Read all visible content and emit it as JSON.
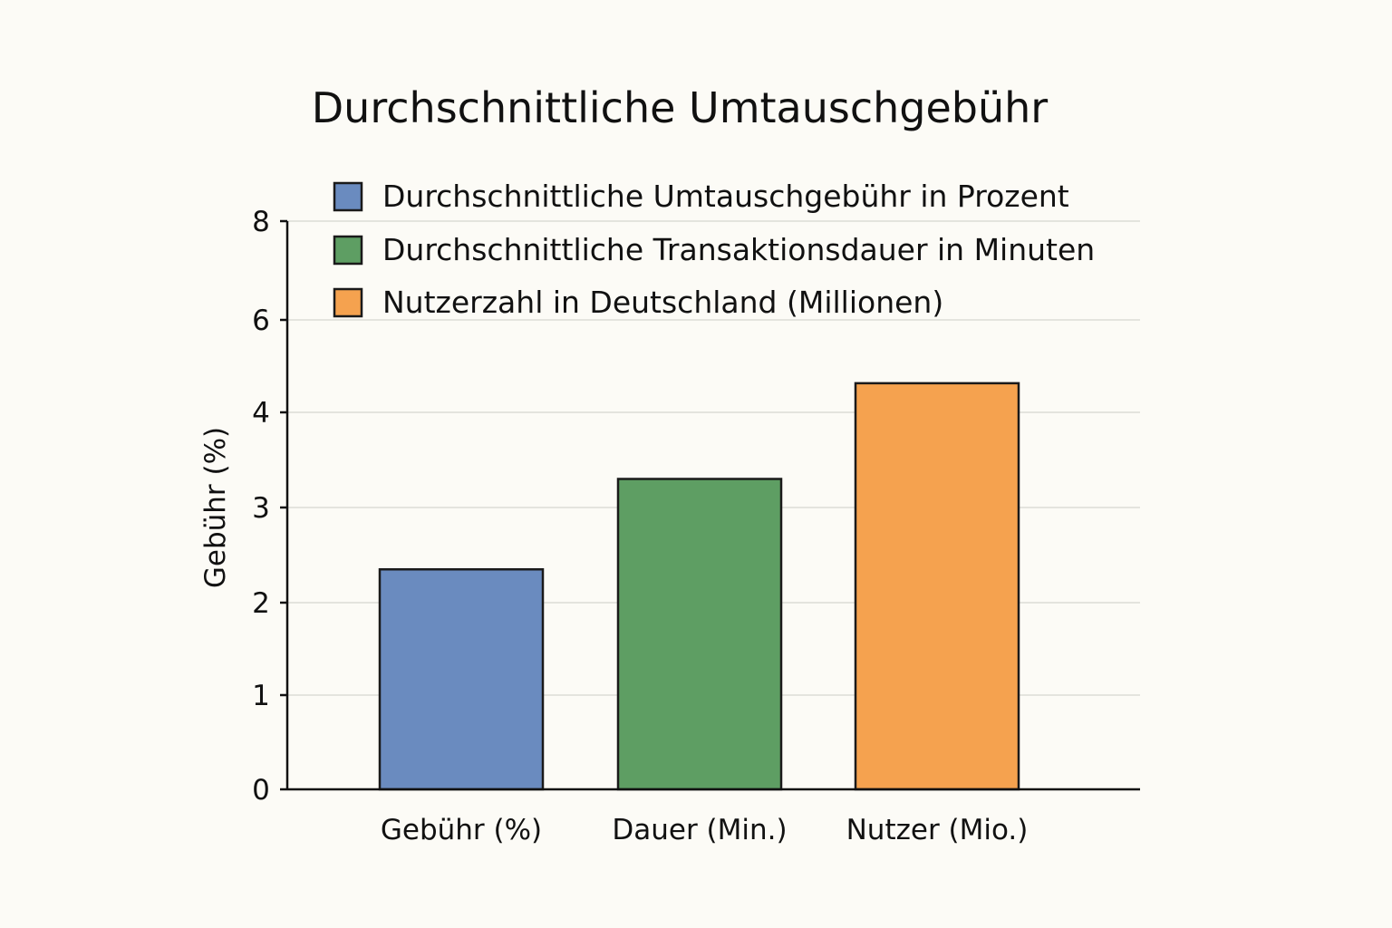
{
  "chart_data": {
    "type": "bar",
    "title": "Durchschnittliche Umtauschgebühr",
    "xlabel": "",
    "ylabel": "Gebühr (%)",
    "categories": [
      "Gebühr (%)",
      "Dauer (Min.)",
      "Nutzer (Mio.)"
    ],
    "values": [
      2.35,
      3.3,
      4.63
    ],
    "colors": [
      "#6a8bbf",
      "#5e9e63",
      "#f5a24f"
    ],
    "y_ticks": [
      0,
      1,
      2,
      3,
      4,
      6,
      8
    ],
    "y_tick_labels": [
      "0",
      "1",
      "2",
      "3",
      "4",
      "6",
      "8"
    ],
    "legend": [
      {
        "label": "Durchschnittliche Umtauschgebühr in Prozent",
        "color": "#6a8bbf"
      },
      {
        "label": "Durchschnittliche Transaktionsdauer in Minuten",
        "color": "#5e9e63"
      },
      {
        "label": "Nutzerzahl in Deutschland (Millionen)",
        "color": "#f5a24f"
      }
    ],
    "legend_position": "top-right",
    "grid": true
  }
}
